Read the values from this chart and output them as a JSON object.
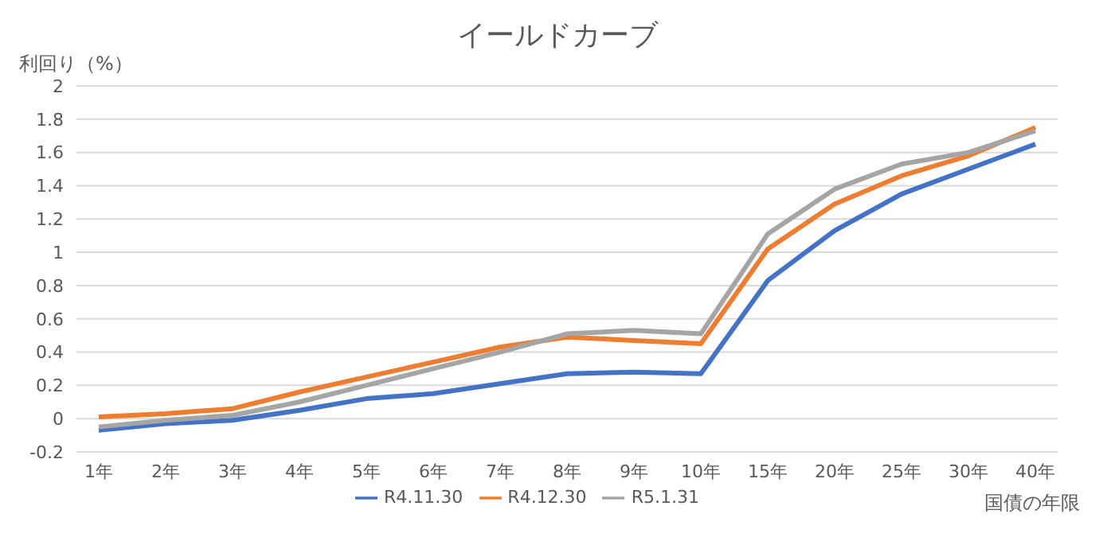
{
  "chart_data": {
    "type": "line",
    "title": "イールドカーブ",
    "ylabel": "利回り（%）",
    "xlabel": "国債の年限",
    "categories": [
      "1年",
      "2年",
      "3年",
      "4年",
      "5年",
      "6年",
      "7年",
      "8年",
      "9年",
      "10年",
      "15年",
      "20年",
      "25年",
      "30年",
      "40年"
    ],
    "series": [
      {
        "name": "R4.11.30",
        "color": "#4472c4",
        "values": [
          -0.07,
          -0.03,
          -0.01,
          0.05,
          0.12,
          0.15,
          0.21,
          0.27,
          0.28,
          0.27,
          0.83,
          1.13,
          1.35,
          1.5,
          1.65
        ]
      },
      {
        "name": "R4.12.30",
        "color": "#ed7d31",
        "values": [
          0.01,
          0.03,
          0.06,
          0.16,
          0.25,
          0.34,
          0.43,
          0.49,
          0.47,
          0.45,
          1.02,
          1.29,
          1.46,
          1.58,
          1.75
        ]
      },
      {
        "name": "R5.1.31",
        "color": "#a5a5a5",
        "values": [
          -0.05,
          -0.01,
          0.02,
          0.1,
          0.2,
          0.3,
          0.4,
          0.51,
          0.53,
          0.51,
          1.11,
          1.38,
          1.53,
          1.6,
          1.73
        ]
      }
    ],
    "ylim": [
      -0.2,
      2
    ],
    "yticks": [
      -0.2,
      0,
      0.2,
      0.4,
      0.6,
      0.8,
      1,
      1.2,
      1.4,
      1.6,
      1.8,
      2
    ],
    "grid": "y",
    "legend": "bottom",
    "marker": "none",
    "line_style": "solid"
  }
}
